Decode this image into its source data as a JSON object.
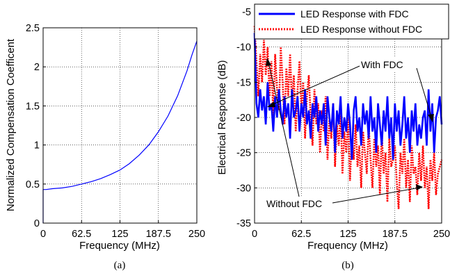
{
  "chart_data": [
    {
      "type": "line",
      "panel_label": "(a)",
      "xlabel": "Frequency (MHz)",
      "ylabel": "Normalized Compensation Coefficent",
      "xlim": [
        0,
        250
      ],
      "ylim": [
        0,
        2.5
      ],
      "xticks": [
        "0",
        "62.5",
        "125",
        "187.5",
        "250"
      ],
      "yticks": [
        "0",
        "0.5",
        "1",
        "1.5",
        "2",
        "2.5"
      ],
      "grid": true,
      "series": [
        {
          "color": "#0000ff",
          "x": [
            0,
            5,
            15,
            31.25,
            47,
            62.5,
            78,
            93.75,
            109,
            125,
            140,
            156.25,
            172,
            187.5,
            203,
            218.75,
            234,
            242,
            250
          ],
          "y": [
            0.43,
            0.43,
            0.44,
            0.45,
            0.47,
            0.5,
            0.53,
            0.57,
            0.62,
            0.68,
            0.76,
            0.87,
            1.0,
            1.17,
            1.37,
            1.63,
            1.95,
            2.15,
            2.33
          ]
        }
      ]
    },
    {
      "type": "line",
      "panel_label": "(b)",
      "xlabel": "Frequency  (MHz)",
      "ylabel": "Electrical Response (dB)",
      "xlim": [
        0,
        250
      ],
      "ylim": [
        -35,
        -5
      ],
      "xticks": [
        "0",
        "62.5",
        "125",
        "187.5",
        "250"
      ],
      "yticks": [
        "-35",
        "-30",
        "-25",
        "-20",
        "-15",
        "-10",
        "-5"
      ],
      "grid": true,
      "legend_position": "top-right",
      "series": [
        {
          "name": "LED Response with FDC",
          "color": "#0000ff",
          "style": "solid",
          "x_start": 0,
          "x_step": 2.5,
          "y": [
            -8,
            -18,
            -20,
            -16,
            -19,
            -17,
            -21,
            -15,
            -19,
            -18,
            -22,
            -17,
            -20,
            -16,
            -19,
            -21,
            -17,
            -20,
            -18,
            -23,
            -16,
            -20,
            -19,
            -17,
            -22,
            -18,
            -20,
            -16,
            -21,
            -19,
            -23,
            -18,
            -20,
            -17,
            -22,
            -19,
            -21,
            -18,
            -24,
            -17,
            -20,
            -22,
            -18,
            -25,
            -19,
            -21,
            -17,
            -23,
            -20,
            -22,
            -18,
            -21,
            -26,
            -19,
            -17,
            -22,
            -20,
            -24,
            -18,
            -21,
            -19,
            -23,
            -17,
            -22,
            -20,
            -25,
            -18,
            -21,
            -24,
            -19,
            -22,
            -17,
            -23,
            -20,
            -26,
            -18,
            -22,
            -19,
            -24,
            -21,
            -17,
            -23,
            -20,
            -25,
            -19,
            -22,
            -18,
            -24,
            -21,
            -23,
            -20,
            -19,
            -24,
            -16,
            -22,
            -18,
            -25,
            -20,
            -19,
            -17,
            -21
          ]
        },
        {
          "name": "LED Response without FDC",
          "color": "#ff0000",
          "style": "dotted",
          "x_start": 0,
          "x_step": 2.5,
          "y": [
            -7,
            -12,
            -17,
            -11,
            -15,
            -9,
            -14,
            -10,
            -17,
            -12,
            -20,
            -11,
            -16,
            -19,
            -10,
            -15,
            -21,
            -13,
            -17,
            -11,
            -18,
            -14,
            -22,
            -16,
            -12,
            -19,
            -15,
            -23,
            -17,
            -14,
            -20,
            -24,
            -16,
            -21,
            -18,
            -25,
            -19,
            -22,
            -17,
            -26,
            -20,
            -23,
            -18,
            -27,
            -21,
            -24,
            -19,
            -28,
            -22,
            -25,
            -20,
            -29,
            -23,
            -26,
            -21,
            -27,
            -24,
            -30,
            -22,
            -25,
            -28,
            -21,
            -26,
            -30,
            -23,
            -27,
            -24,
            -31,
            -22,
            -28,
            -25,
            -32,
            -23,
            -27,
            -26,
            -24,
            -29,
            -33,
            -25,
            -28,
            -23,
            -30,
            -26,
            -32,
            -24,
            -28,
            -27,
            -31,
            -25,
            -29,
            -24,
            -30,
            -27,
            -33,
            -26,
            -29,
            -25,
            -31,
            -28,
            -27,
            -26
          ]
        }
      ],
      "annotations": [
        "With FDC",
        "Without FDC"
      ]
    }
  ]
}
